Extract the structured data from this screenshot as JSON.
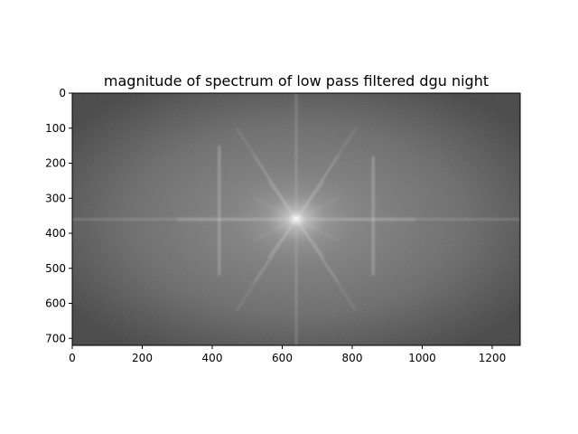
{
  "chart_data": {
    "type": "heatmap",
    "title": "magnitude of spectrum of low pass filtered dgu night",
    "xlabel": "",
    "ylabel": "",
    "colormap": "gray",
    "image_width": 1280,
    "image_height": 720,
    "xlim": [
      0,
      1280
    ],
    "ylim": [
      720,
      0
    ],
    "x_ticks": [
      0,
      200,
      400,
      600,
      800,
      1000,
      1200
    ],
    "y_ticks": [
      0,
      100,
      200,
      300,
      400,
      500,
      600,
      700
    ],
    "spectrum_center": [
      640,
      360
    ],
    "grid": false,
    "legend": "none"
  }
}
